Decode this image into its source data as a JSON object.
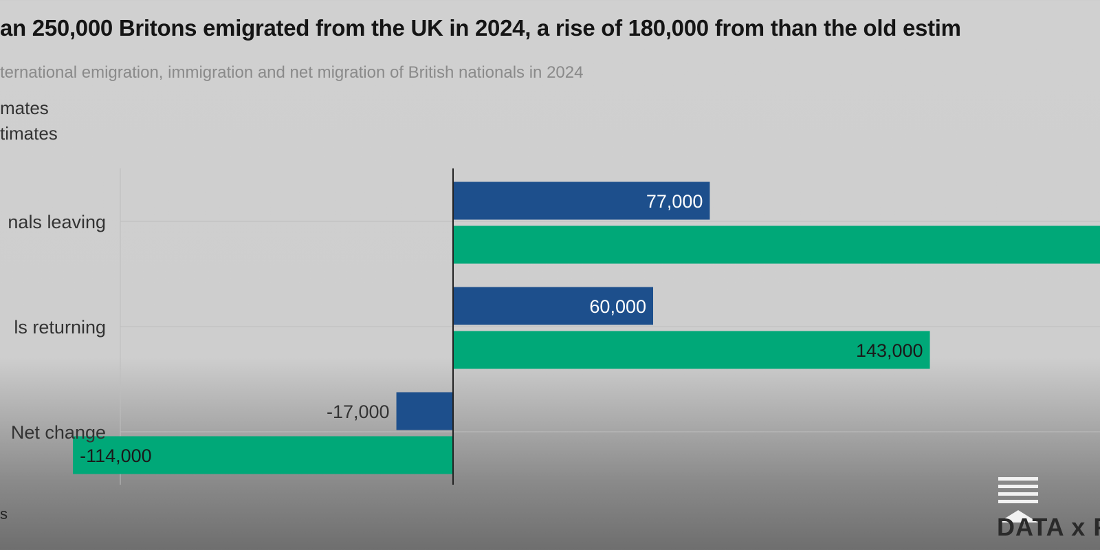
{
  "header": {
    "title": "an 250,000 Britons emigrated from the UK in 2024, a rise of 180,000 from than the old estim",
    "subtitle": "ternational emigration, immigration and net migration of British nationals in 2024"
  },
  "legend": [
    {
      "label": "mates",
      "color": "#1d4f8c"
    },
    {
      "label": "timates",
      "color": "#00a878"
    }
  ],
  "colors": {
    "old": "#1d4f8c",
    "new": "#00a878",
    "axis": "#222222",
    "grid": "#bdbdbd"
  },
  "chart_data": {
    "type": "bar",
    "orientation": "horizontal",
    "categories": [
      "nals leaving",
      "ls returning",
      "Net change"
    ],
    "series": [
      {
        "name": "mates",
        "values": [
          77000,
          60000,
          -17000
        ],
        "labels": [
          "77,000",
          "60,000",
          "-17,000"
        ]
      },
      {
        "name": "timates",
        "values": [
          257000,
          143000,
          -114000
        ],
        "labels": [
          "",
          "143,000",
          "-114,000"
        ]
      }
    ],
    "grid": true,
    "legend_position": "top-left"
  },
  "source": "s",
  "logo": {
    "text": "DATA x F",
    "name": "data-x-forensics-logo"
  }
}
